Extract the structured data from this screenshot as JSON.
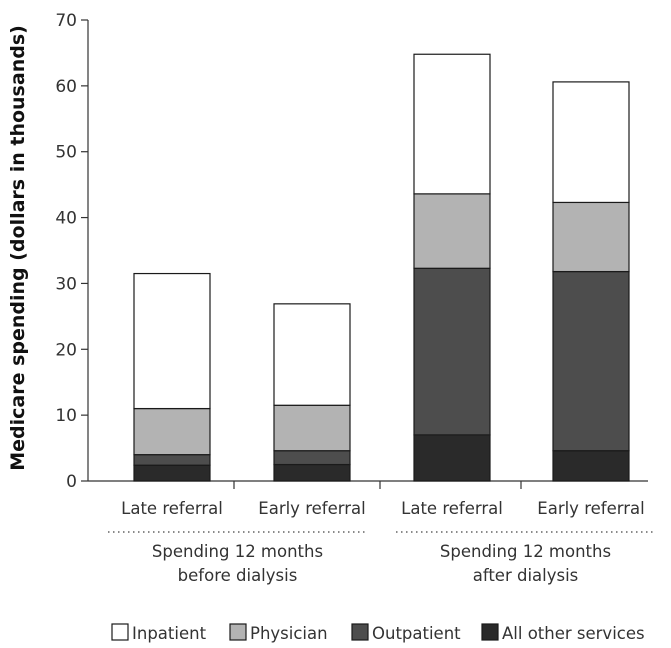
{
  "chart_data": {
    "type": "bar",
    "stacked": true,
    "ylabel": "Medicare spending (dollars in thousands)",
    "ylim": [
      0,
      70
    ],
    "yticks": [
      0,
      10,
      20,
      30,
      40,
      50,
      60,
      70
    ],
    "categories": [
      "Late referral",
      "Early referral",
      "Late referral",
      "Early referral"
    ],
    "groups": [
      {
        "label_lines": [
          "Spending 12 months",
          "before dialysis"
        ]
      },
      {
        "label_lines": [
          "Spending 12 months",
          "after dialysis"
        ]
      }
    ],
    "series": [
      {
        "name": "All other services",
        "color": "#2a2a2a",
        "values": [
          2.4,
          2.5,
          7.0,
          4.6
        ]
      },
      {
        "name": "Outpatient",
        "color": "#4d4d4d",
        "values": [
          1.6,
          2.1,
          25.3,
          27.2
        ]
      },
      {
        "name": "Physician",
        "color": "#b3b3b3",
        "values": [
          7.0,
          6.9,
          11.3,
          10.5
        ]
      },
      {
        "name": "Inpatient",
        "color": "#ffffff",
        "values": [
          20.5,
          15.4,
          21.2,
          18.3
        ]
      }
    ],
    "legend_order": [
      "Inpatient",
      "Physician",
      "Outpatient",
      "All other services"
    ],
    "legend_position": "bottom",
    "grid": false
  }
}
